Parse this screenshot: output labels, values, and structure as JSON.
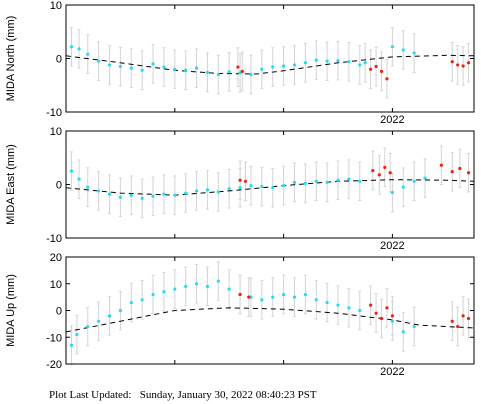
{
  "colors": {
    "cyan": "#22dded",
    "red": "#ee2211",
    "error_bar": "#d4d4d4",
    "model_line": "#000000",
    "axis": "#000000"
  },
  "chart_data": [
    {
      "type": "scatter",
      "ylabel": "MIDA North (mm)",
      "ylim": [
        -10,
        10
      ],
      "yticks": [
        -10,
        0,
        10
      ],
      "xlim": [
        2019.0,
        2022.75
      ],
      "xtick_labels": [
        {
          "x": 2022.0,
          "label": "2022"
        }
      ],
      "show_x_tick_label": true,
      "series": [
        {
          "color": "cyan",
          "x": [
            2019.05,
            2019.12,
            2019.2,
            2019.3,
            2019.4,
            2019.5,
            2019.6,
            2019.7,
            2019.8,
            2019.9,
            2020.0,
            2020.1,
            2020.2,
            2020.3,
            2020.4,
            2020.5,
            2020.6,
            2020.7,
            2020.8,
            2020.9,
            2021.0,
            2021.1,
            2021.2,
            2021.3,
            2021.4,
            2021.5,
            2021.6,
            2021.7,
            2021.75,
            2022.0,
            2022.1,
            2022.2
          ],
          "y": [
            2.2,
            1.8,
            0.8,
            -0.5,
            -1.2,
            -1.5,
            -1.8,
            -2.2,
            -1.0,
            -1.6,
            -2.0,
            -2.2,
            -1.8,
            -2.6,
            -3.0,
            -2.5,
            -2.7,
            -3.0,
            -2.0,
            -1.6,
            -1.4,
            -1.2,
            -0.8,
            -0.3,
            -0.5,
            -0.4,
            -0.6,
            -1.2,
            -0.8,
            2.2,
            1.6,
            1.0
          ]
        },
        {
          "color": "red",
          "x": [
            2020.58,
            2020.62,
            2021.8,
            2021.85,
            2021.9,
            2021.95,
            2022.55,
            2022.6,
            2022.65,
            2022.7
          ],
          "y": [
            -1.6,
            -2.4,
            -2.0,
            -1.5,
            -2.4,
            -3.8,
            -0.6,
            -1.2,
            -1.4,
            -0.8
          ]
        }
      ],
      "model": {
        "x": [
          2019.0,
          2019.5,
          2020.0,
          2020.4,
          2020.75,
          2021.0,
          2021.5,
          2022.0,
          2022.5,
          2022.75
        ],
        "y": [
          0.5,
          -0.8,
          -2.2,
          -2.8,
          -2.9,
          -2.3,
          -0.8,
          0.3,
          0.6,
          0.5
        ]
      }
    },
    {
      "type": "scatter",
      "ylabel": "MIDA East (mm)",
      "ylim": [
        -10,
        10
      ],
      "yticks": [
        -10,
        0,
        10
      ],
      "xlim": [
        2019.0,
        2022.75
      ],
      "xtick_labels": [
        {
          "x": 2022.0,
          "label": "2022"
        }
      ],
      "show_x_tick_label": true,
      "series": [
        {
          "color": "cyan",
          "x": [
            2019.05,
            2019.12,
            2019.2,
            2019.3,
            2019.4,
            2019.5,
            2019.6,
            2019.7,
            2019.8,
            2019.9,
            2020.0,
            2020.1,
            2020.2,
            2020.3,
            2020.4,
            2020.5,
            2020.6,
            2020.7,
            2020.8,
            2020.9,
            2021.0,
            2021.1,
            2021.2,
            2021.3,
            2021.4,
            2021.5,
            2021.6,
            2021.7,
            2022.0,
            2022.1,
            2022.2,
            2022.3
          ],
          "y": [
            2.5,
            1.0,
            -0.5,
            -1.2,
            -1.8,
            -2.4,
            -2.0,
            -2.6,
            -2.2,
            -1.8,
            -2.0,
            -1.6,
            -1.2,
            -1.0,
            -1.4,
            -0.8,
            -0.6,
            -0.2,
            -0.4,
            -0.6,
            -0.2,
            0.4,
            0.2,
            0.6,
            0.4,
            0.8,
            1.0,
            0.6,
            -1.5,
            -0.5,
            0.6,
            1.2
          ]
        },
        {
          "color": "red",
          "x": [
            2020.6,
            2020.65,
            2021.82,
            2021.88,
            2021.93,
            2021.98,
            2022.45,
            2022.55,
            2022.62,
            2022.7
          ],
          "y": [
            0.8,
            0.6,
            2.6,
            1.8,
            3.2,
            2.2,
            3.6,
            2.4,
            3.0,
            2.2
          ]
        }
      ],
      "model": {
        "x": [
          2019.0,
          2019.5,
          2020.0,
          2020.5,
          2021.0,
          2021.5,
          2022.0,
          2022.5,
          2022.75
        ],
        "y": [
          -0.6,
          -1.6,
          -2.0,
          -1.2,
          -0.2,
          0.6,
          0.9,
          0.8,
          0.6
        ]
      }
    },
    {
      "type": "scatter",
      "ylabel": "MIDA Up (mm)",
      "ylim": [
        -20,
        20
      ],
      "yticks": [
        -20,
        -10,
        0,
        10,
        20
      ],
      "xlim": [
        2019.0,
        2022.75
      ],
      "xtick_labels": [
        {
          "x": 2022.0,
          "label": "2022"
        }
      ],
      "show_x_tick_label": true,
      "series": [
        {
          "color": "cyan",
          "x": [
            2019.05,
            2019.1,
            2019.2,
            2019.3,
            2019.4,
            2019.5,
            2019.6,
            2019.7,
            2019.8,
            2019.9,
            2020.0,
            2020.1,
            2020.2,
            2020.3,
            2020.4,
            2020.5,
            2020.6,
            2020.7,
            2020.8,
            2020.9,
            2021.0,
            2021.1,
            2021.2,
            2021.3,
            2021.4,
            2021.5,
            2021.6,
            2021.7,
            2022.0,
            2022.1,
            2022.2
          ],
          "y": [
            -13,
            -9,
            -6,
            -4,
            -2,
            0,
            3,
            4,
            6,
            7,
            8,
            9,
            10,
            9,
            11,
            8,
            6,
            5,
            4,
            5,
            6,
            5,
            6,
            4,
            3,
            2,
            1,
            0,
            -4,
            -8,
            -6
          ]
        },
        {
          "color": "red",
          "x": [
            2020.6,
            2020.68,
            2021.8,
            2021.85,
            2021.9,
            2021.95,
            2022.0,
            2022.55,
            2022.6,
            2022.65,
            2022.7
          ],
          "y": [
            6,
            5,
            2,
            -1,
            -3,
            1,
            -2,
            -4,
            -6,
            -2,
            -3
          ]
        }
      ],
      "model": {
        "x": [
          2019.0,
          2019.5,
          2020.0,
          2020.5,
          2021.0,
          2021.5,
          2022.0,
          2022.25,
          2022.75
        ],
        "y": [
          -8,
          -4,
          0,
          1,
          0.5,
          -1,
          -3.5,
          -5.5,
          -6.5
        ]
      }
    }
  ],
  "footer": {
    "label": "Plot Last Updated:",
    "timestamp": "Sunday, January 30, 2022 08:40:23 PST"
  }
}
